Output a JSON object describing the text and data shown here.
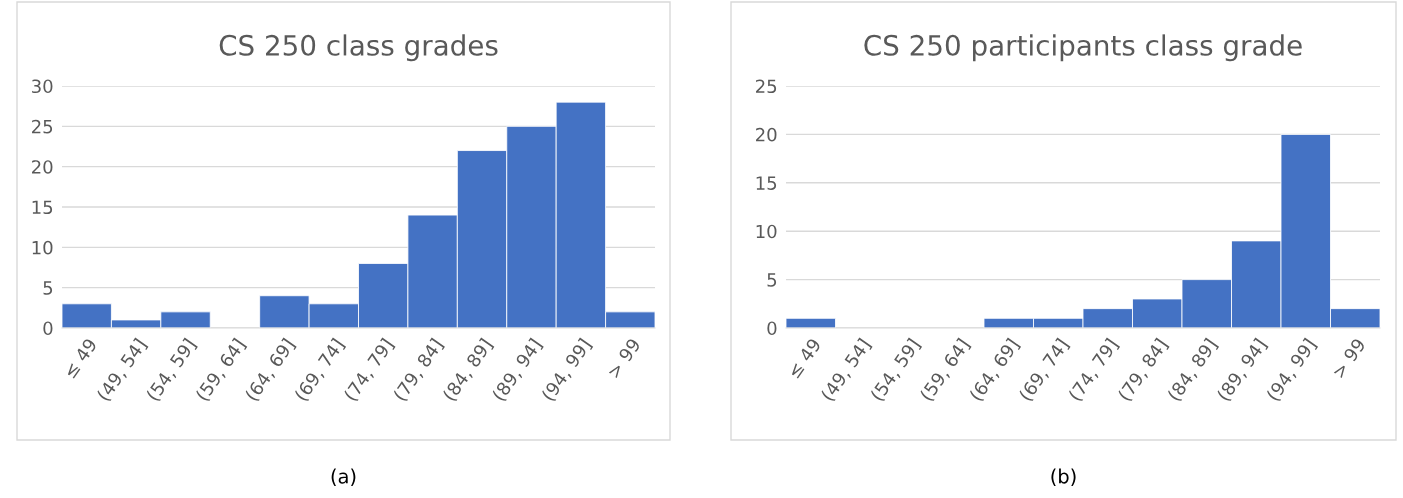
{
  "chart_data": [
    {
      "type": "bar",
      "title": "CS 250 class grades",
      "categories": [
        "≤ 49",
        "(49, 54]",
        "(54, 59]",
        "(59, 64]",
        "(64, 69]",
        "(69, 74]",
        "(74, 79]",
        "(79, 84]",
        "(84, 89]",
        "(89, 94]",
        "(94, 99]",
        "> 99"
      ],
      "values": [
        3,
        1,
        2,
        0,
        4,
        3,
        8,
        14,
        22,
        25,
        28,
        2
      ],
      "color": "#4472c4",
      "ylim": [
        0,
        30
      ],
      "yticks": [
        0,
        5,
        10,
        15,
        20,
        25,
        30
      ],
      "grid": "y",
      "annotations": [
        "(a)"
      ]
    },
    {
      "type": "bar",
      "title": "CS 250 participants class grade",
      "categories": [
        "≤ 49",
        "(49, 54]",
        "(54, 59]",
        "(59, 64]",
        "(64, 69]",
        "(69, 74]",
        "(74, 79]",
        "(79, 84]",
        "(84, 89]",
        "(89, 94]",
        "(94, 99]",
        "> 99"
      ],
      "values": [
        1,
        0,
        0,
        0,
        1,
        1,
        2,
        3,
        5,
        9,
        20,
        2
      ],
      "color": "#4472c4",
      "ylim": [
        0,
        25
      ],
      "yticks": [
        0,
        5,
        10,
        15,
        20,
        25
      ],
      "grid": "y",
      "annotations": [
        "(b)"
      ]
    }
  ]
}
